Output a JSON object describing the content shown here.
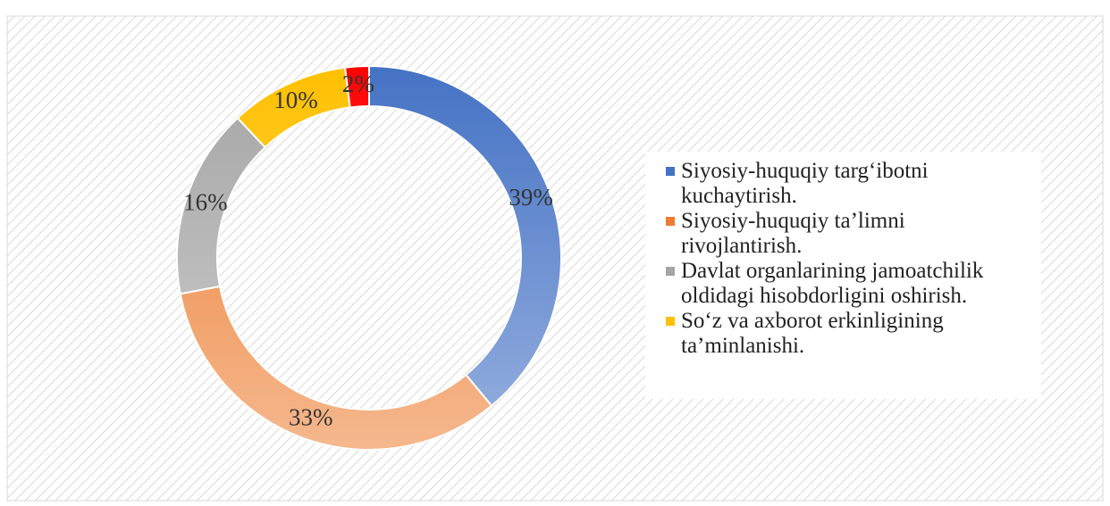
{
  "chart_data": {
    "type": "pie",
    "categories": [
      "Siyosiy-huquqiy targ‘ibotni kuchaytirish.",
      "Siyosiy-huquqiy ta’limni rivojlantirish.",
      "Davlat organlarining jamoatchilik oldidagi hisobdorligini oshirish.",
      "So‘z va axborot erkinligining ta’minlanishi.",
      null
    ],
    "values": [
      39,
      33,
      16,
      10,
      2
    ],
    "value_labels": [
      "39%",
      "33%",
      "16%",
      "10%",
      "2%"
    ],
    "colors": [
      "#4472c4",
      "#ed7d31",
      "#a5a5a5",
      "#ffc000",
      "#ff0000"
    ],
    "legend": "right"
  }
}
